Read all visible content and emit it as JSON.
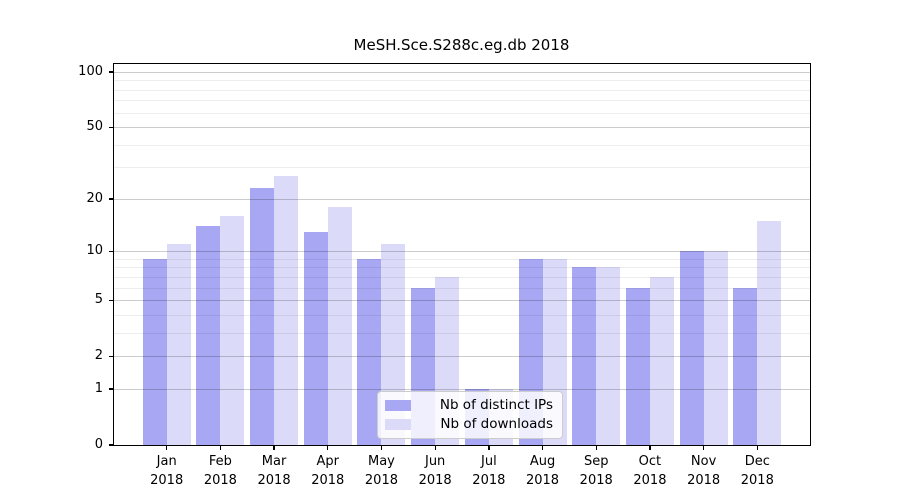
{
  "chart_data": {
    "type": "bar",
    "title": "MeSH.Sce.S288c.eg.db 2018",
    "categories": [
      "Jan 2018",
      "Feb 2018",
      "Mar 2018",
      "Apr 2018",
      "May 2018",
      "Jun 2018",
      "Jul 2018",
      "Aug 2018",
      "Sep 2018",
      "Oct 2018",
      "Nov 2018",
      "Dec 2018"
    ],
    "series": [
      {
        "name": "Nb of distinct IPs",
        "color": "#a7a7f3",
        "values": [
          9,
          14,
          23,
          13,
          9,
          6,
          1,
          9,
          8,
          6,
          10,
          6
        ]
      },
      {
        "name": "Nb of downloads",
        "color": "#dbdbf9",
        "values": [
          11,
          16,
          27,
          18,
          11,
          7,
          1,
          9,
          8,
          7,
          10,
          15
        ]
      }
    ],
    "xlabel": "",
    "ylabel": "",
    "yscale": "log1p",
    "ylim": [
      0,
      112
    ],
    "yticks": [
      0,
      1,
      2,
      5,
      10,
      20,
      50,
      100
    ],
    "minor_yticks": [
      3,
      4,
      6,
      7,
      8,
      9,
      30,
      40,
      60,
      70,
      80,
      90
    ],
    "grid": true,
    "legend_position": "lower-center"
  }
}
